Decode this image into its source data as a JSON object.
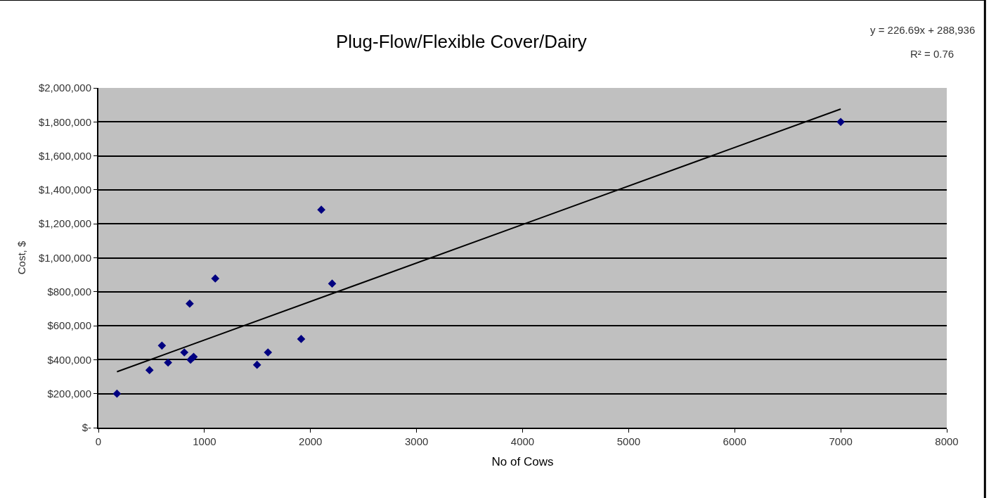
{
  "chart_data": {
    "type": "scatter",
    "title": "Plug-Flow/Flexible Cover/Dairy",
    "xlabel": "No of Cows",
    "ylabel": "Cost, $",
    "annotations": [
      "y = 226.69x + 288,936",
      "R² = 0.76"
    ],
    "series": [
      {
        "color": "#000080",
        "marker": "diamond",
        "x": [
          175,
          482,
          599,
          657,
          810,
          869,
          898,
          861,
          1102,
          1496,
          1599,
          1912,
          2102,
          2204,
          7000
        ],
        "values": [
          200000,
          339000,
          483000,
          383000,
          443000,
          400000,
          417000,
          730000,
          878000,
          370000,
          443000,
          522000,
          1283000,
          848000,
          1800000
        ]
      },
      {
        "type": "line",
        "color": "#000000",
        "marker": "none",
        "x": [
          175,
          7000
        ],
        "values": [
          329000,
          1876000
        ]
      }
    ],
    "xlim": [
      0,
      8000
    ],
    "xticks": [
      0,
      1000,
      2000,
      3000,
      4000,
      5000,
      6000,
      7000,
      8000
    ],
    "ylim": [
      0,
      2000000
    ],
    "yticks": [
      {
        "value": 0,
        "label": "$-"
      },
      {
        "value": 200000,
        "label": "$200,000"
      },
      {
        "value": 400000,
        "label": "$400,000"
      },
      {
        "value": 600000,
        "label": "$600,000"
      },
      {
        "value": 800000,
        "label": "$800,000"
      },
      {
        "value": 1000000,
        "label": "$1,000,000"
      },
      {
        "value": 1200000,
        "label": "$1,200,000"
      },
      {
        "value": 1400000,
        "label": "$1,400,000"
      },
      {
        "value": 1600000,
        "label": "$1,600,000"
      },
      {
        "value": 1800000,
        "label": "$1,800,000"
      },
      {
        "value": 2000000,
        "label": "$2,000,000"
      }
    ],
    "grid": "y"
  }
}
